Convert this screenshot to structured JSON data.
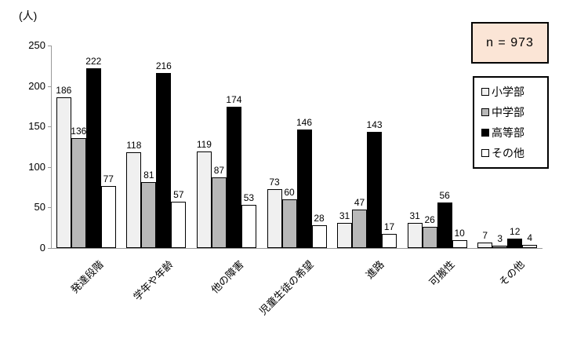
{
  "chart_data": {
    "type": "bar",
    "title": "",
    "unit_label": "(人)",
    "categories": [
      "発達段階",
      "学年や年齢",
      "他の障害",
      "児童生徒の希望",
      "進路",
      "可搬性",
      "その他"
    ],
    "series": [
      {
        "name": "小学部",
        "color": "#f0f0f0",
        "values": [
          186,
          118,
          119,
          73,
          31,
          31,
          7
        ]
      },
      {
        "name": "中学部",
        "color": "#b8b8b8",
        "values": [
          136,
          81,
          87,
          60,
          47,
          26,
          3
        ]
      },
      {
        "name": "高等部",
        "color": "#000000",
        "values": [
          222,
          216,
          174,
          146,
          143,
          56,
          12
        ]
      },
      {
        "name": "その他",
        "color": "#ffffff",
        "values": [
          77,
          57,
          53,
          28,
          17,
          10,
          4
        ]
      }
    ],
    "ylim": [
      0,
      250
    ],
    "yticks": [
      0,
      50,
      100,
      150,
      200,
      250
    ],
    "grid": false,
    "legend_position": "right",
    "axis_color": "#999999"
  },
  "annotation": {
    "sample_size": "n = 973"
  }
}
